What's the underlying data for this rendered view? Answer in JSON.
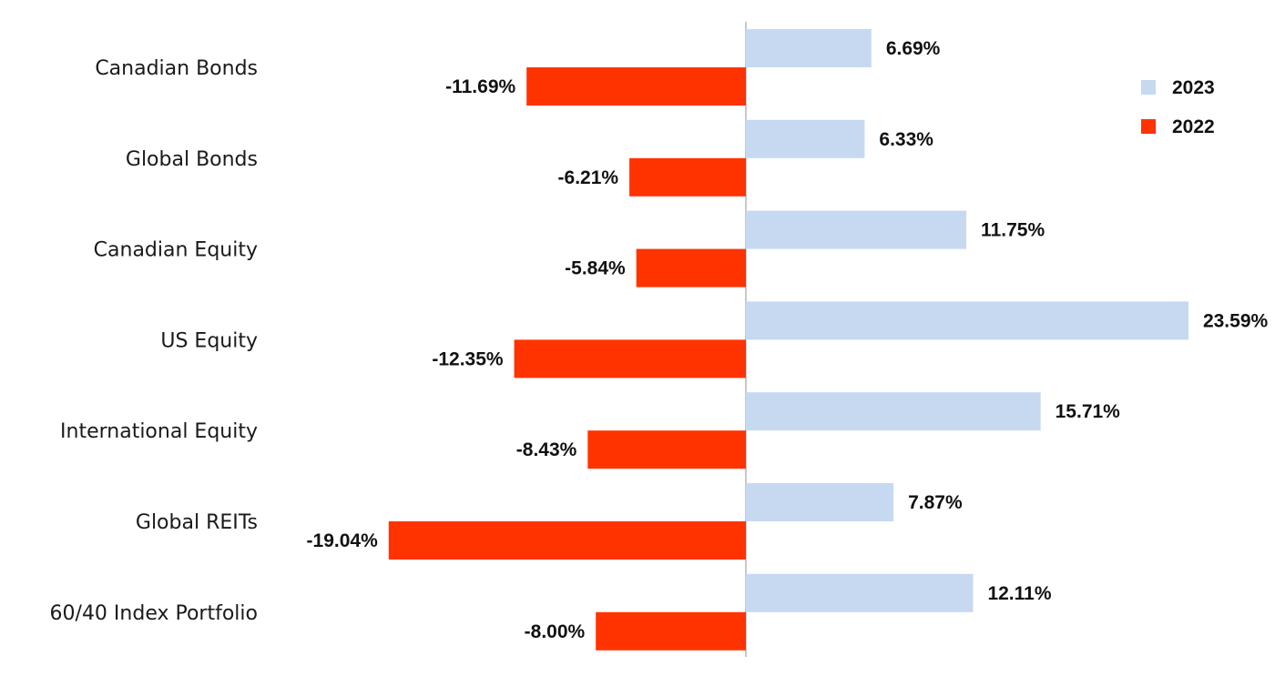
{
  "chart_data": {
    "type": "bar",
    "orientation": "horizontal",
    "categories": [
      "Canadian Bonds",
      "Global Bonds",
      "Canadian Equity",
      "US Equity",
      "International Equity",
      "Global REITs",
      "60/40 Index Portfolio"
    ],
    "series": [
      {
        "name": "2023",
        "color": "#c6d9f1",
        "values": [
          6.69,
          6.33,
          11.75,
          23.59,
          15.71,
          7.87,
          12.11
        ],
        "labels": [
          "6.69%",
          "6.33%",
          "11.75%",
          "23.59%",
          "15.71%",
          "7.87%",
          "12.11%"
        ]
      },
      {
        "name": "2022",
        "color": "#ff3300",
        "values": [
          -11.69,
          -6.21,
          -5.84,
          -12.35,
          -8.43,
          -19.04,
          -8.0
        ],
        "labels": [
          "-11.69%",
          "-6.21%",
          "-5.84%",
          "-12.35%",
          "-8.43%",
          "-19.04%",
          "-8.00%"
        ]
      }
    ],
    "legend_position": "top-right",
    "grid": false
  }
}
